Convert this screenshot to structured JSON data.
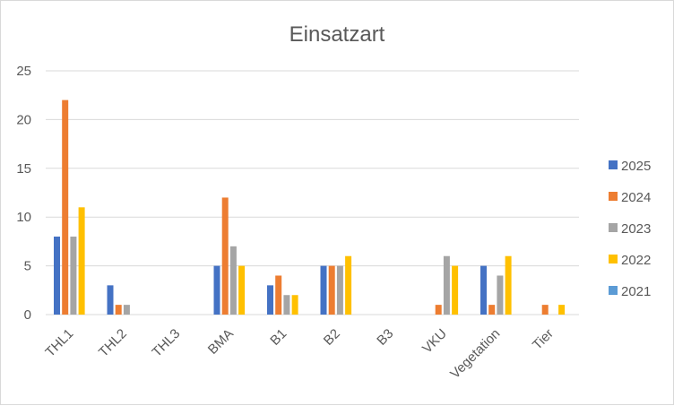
{
  "chart_data": {
    "type": "bar",
    "title": "Einsatzart",
    "xlabel": "",
    "ylabel": "",
    "ylim": [
      0,
      25
    ],
    "yticks": [
      0,
      5,
      10,
      15,
      20,
      25
    ],
    "grid": true,
    "legend_position": "right",
    "categories": [
      "THL1",
      "THL2",
      "THL3",
      "BMA",
      "B1",
      "B2",
      "B3",
      "VKU",
      "Vegetation",
      "Tier"
    ],
    "series": [
      {
        "name": "2025",
        "color": "#4472c4",
        "values": [
          8,
          3,
          0,
          5,
          3,
          5,
          0,
          0,
          5,
          0
        ]
      },
      {
        "name": "2024",
        "color": "#ed7d31",
        "values": [
          22,
          1,
          0,
          12,
          4,
          5,
          0,
          1,
          1,
          1
        ]
      },
      {
        "name": "2023",
        "color": "#a5a5a5",
        "values": [
          8,
          1,
          0,
          7,
          2,
          5,
          0,
          6,
          4,
          0
        ]
      },
      {
        "name": "2022",
        "color": "#ffc000",
        "values": [
          11,
          0,
          0,
          5,
          2,
          6,
          0,
          5,
          6,
          1
        ]
      },
      {
        "name": "2021",
        "color": "#5b9bd5",
        "values": [
          0,
          0,
          0,
          0,
          0,
          0,
          0,
          0,
          0,
          0
        ]
      }
    ]
  }
}
